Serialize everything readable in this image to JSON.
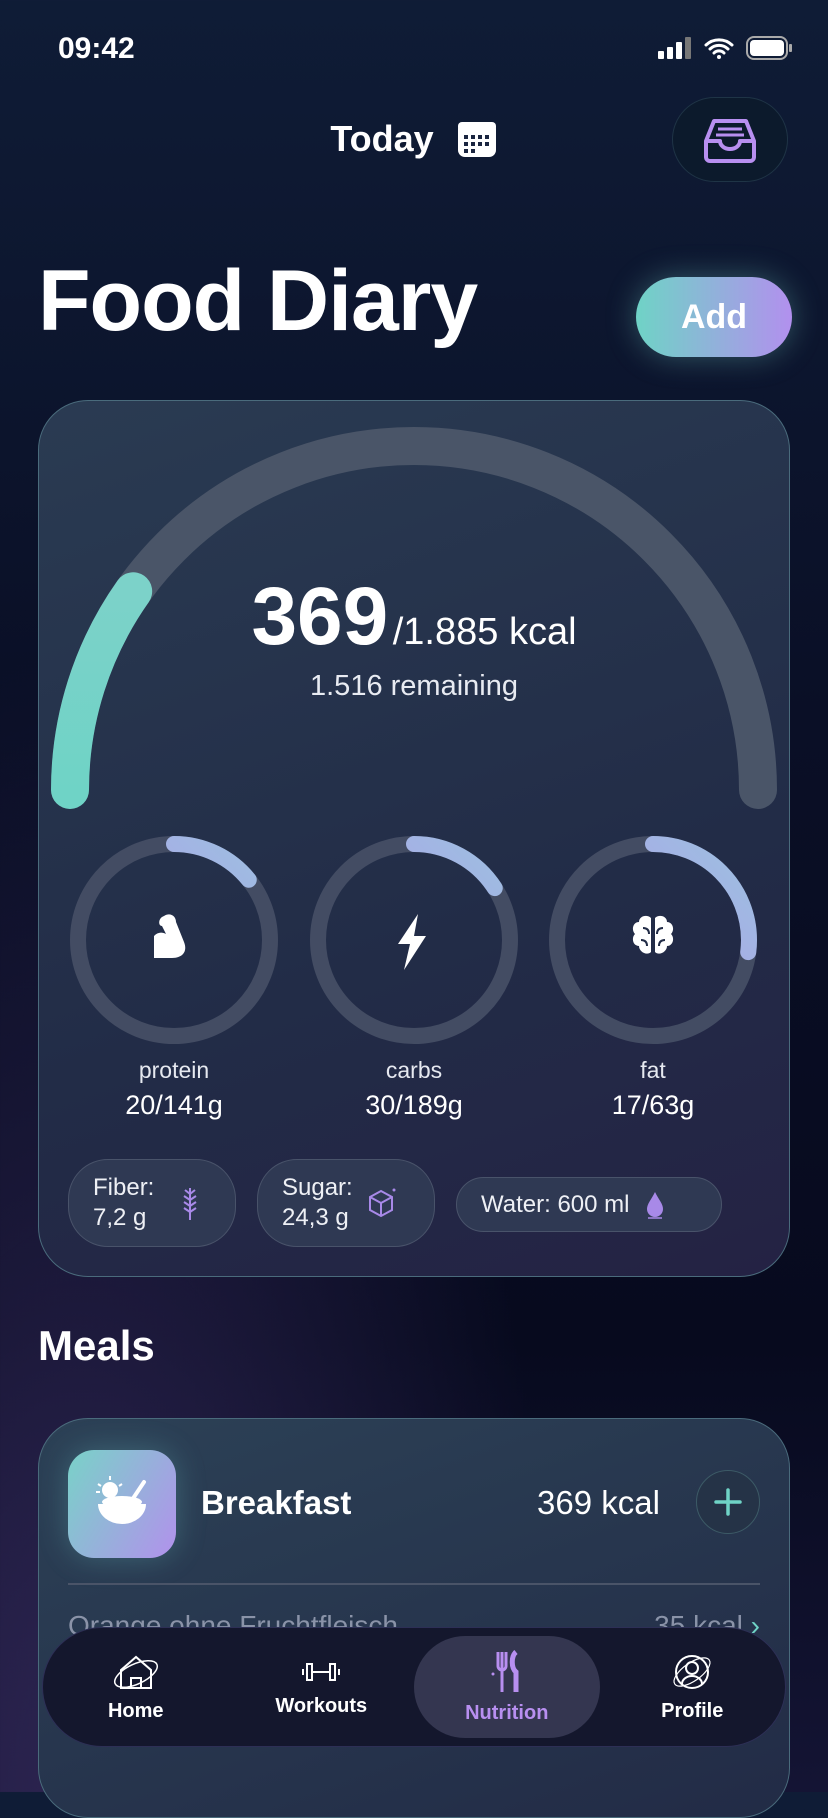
{
  "status": {
    "time": "09:42"
  },
  "header": {
    "date_label": "Today",
    "title": "Food Diary",
    "add_label": "Add"
  },
  "summary": {
    "consumed": "369",
    "goal": "/1.885 kcal",
    "remaining": "1.516 remaining",
    "progress": 0.196,
    "accent_start": "#6fd3c6",
    "accent_end": "#b290ee"
  },
  "macros": [
    {
      "name": "protein",
      "value": "20/141g",
      "icon": "flexed-biceps-icon",
      "progress": 0.142
    },
    {
      "name": "carbs",
      "value": "30/189g",
      "icon": "lightning-icon",
      "progress": 0.159
    },
    {
      "name": "fat",
      "value": "17/63g",
      "icon": "brain-icon",
      "progress": 0.27
    }
  ],
  "chips": {
    "fiber_label": "Fiber:",
    "fiber_value": "7,2 g",
    "sugar_label": "Sugar:",
    "sugar_value": "24,3 g",
    "water": "Water: 600 ml"
  },
  "meals": {
    "title": "Meals",
    "items": [
      {
        "name": "Breakfast",
        "kcal": "369 kcal",
        "entries": [
          {
            "name": "Orange ohne Fruchtfleisch",
            "kcal": "35 kcal"
          }
        ]
      }
    ]
  },
  "nav": [
    {
      "label": "Home",
      "icon": "home-icon"
    },
    {
      "label": "Workouts",
      "icon": "dumbbell-icon"
    },
    {
      "label": "Nutrition",
      "icon": "fork-knife-icon",
      "active": true
    },
    {
      "label": "Profile",
      "icon": "profile-icon"
    }
  ]
}
